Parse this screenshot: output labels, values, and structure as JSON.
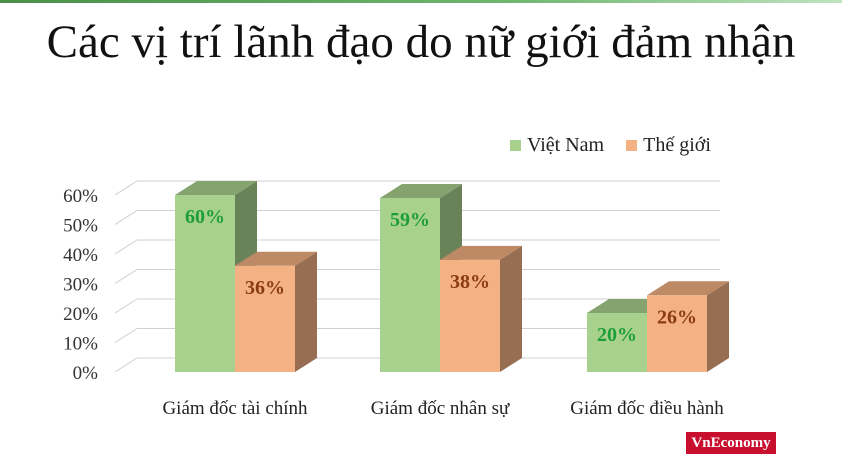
{
  "chart_data": {
    "type": "bar",
    "title": "Các vị trí lãnh đạo do nữ giới đảm nhận",
    "categories": [
      "Giám đốc tài chính",
      "Giám đốc nhân sự",
      "Giám đốc điều hành"
    ],
    "series": [
      {
        "name": "Việt Nam",
        "values": [
          60,
          59,
          20
        ],
        "labels": [
          "60%",
          "59%",
          "20%"
        ],
        "color": "#a9d18e",
        "label_color": "#1e9e3a"
      },
      {
        "name": "Thế giới",
        "values": [
          36,
          38,
          26
        ],
        "labels": [
          "36%",
          "38%",
          "26%"
        ],
        "color": "#f4b183",
        "label_color": "#8a3b12"
      }
    ],
    "yticks": [
      "0%",
      "10%",
      "20%",
      "30%",
      "40%",
      "50%",
      "60%"
    ],
    "ylim": [
      0,
      60
    ],
    "grid": true,
    "legend": "top-right",
    "style": "3d-column"
  },
  "brand": "VnEconomy",
  "colors": {
    "strip": "#4b8f4b",
    "brand": "#c8102e"
  }
}
